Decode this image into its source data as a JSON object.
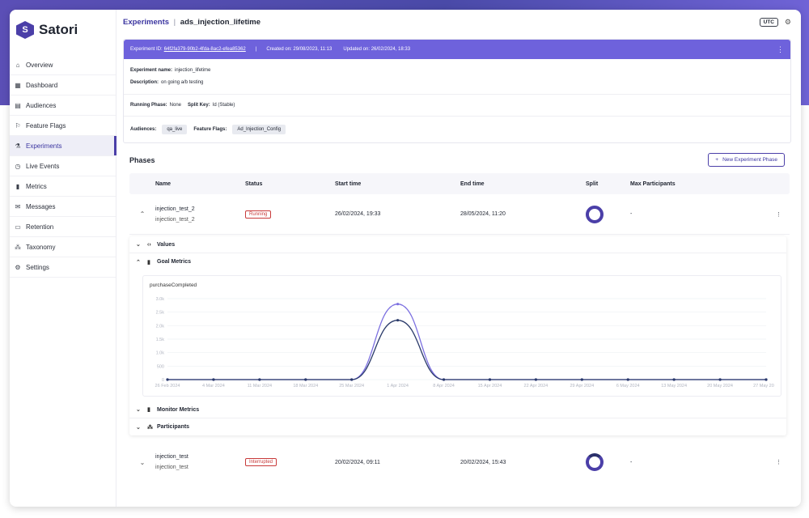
{
  "brand": {
    "name": "Satori",
    "accent": "#4b3fa8",
    "header_bg": "#6e62dc"
  },
  "sidebar": {
    "items": [
      {
        "label": "Overview",
        "icon": "home-icon",
        "glyph": "⌂"
      },
      {
        "label": "Dashboard",
        "icon": "dashboard-icon",
        "glyph": "▦"
      },
      {
        "label": "Audiences",
        "icon": "audiences-icon",
        "glyph": "▤"
      },
      {
        "label": "Feature Flags",
        "icon": "flag-icon",
        "glyph": "⚐"
      },
      {
        "label": "Experiments",
        "icon": "experiments-icon",
        "glyph": "⚗"
      },
      {
        "label": "Live Events",
        "icon": "live-events-icon",
        "glyph": "◷"
      },
      {
        "label": "Metrics",
        "icon": "metrics-icon",
        "glyph": "▮"
      },
      {
        "label": "Messages",
        "icon": "messages-icon",
        "glyph": "✉"
      },
      {
        "label": "Retention",
        "icon": "retention-icon",
        "glyph": "▭"
      },
      {
        "label": "Taxonomy",
        "icon": "taxonomy-icon",
        "glyph": "⁂"
      },
      {
        "label": "Settings",
        "icon": "settings-icon",
        "glyph": "⚙"
      }
    ],
    "active_index": 4
  },
  "header": {
    "breadcrumb_link": "Experiments",
    "breadcrumb_sep": "|",
    "breadcrumb_current": "ads_injection_lifetime",
    "timezone": "UTC"
  },
  "experiment": {
    "id_label": "Experiment ID:",
    "id_value": "64f2fa379-90b2-4fda-8ac2-efea85362",
    "created_label": "Created on:",
    "created_value": "29/08/2023, 11:13",
    "updated_label": "Updated on:",
    "updated_value": "26/02/2024, 18:33",
    "name_label": "Experiment name:",
    "name_value": "injection_lifetime",
    "description_label": "Description:",
    "description_value": "on going a/b testing",
    "running_phase_label": "Running Phase:",
    "running_phase_value": "None",
    "split_key_label": "Split Key:",
    "split_key_value": "Id (Stable)",
    "audiences_label": "Audiences:",
    "audiences_value": "qa_live",
    "feature_flags_label": "Feature Flags:",
    "feature_flags_value": "Ad_Injection_Config"
  },
  "phases": {
    "title": "Phases",
    "new_button": "New Experiment Phase",
    "columns": [
      "Name",
      "Status",
      "Start time",
      "End time",
      "Split",
      "Max Participants"
    ],
    "rows": [
      {
        "name": "injection_test_2",
        "subname": "injection_test_2",
        "status": "Running",
        "start": "26/02/2024, 19:33",
        "end": "28/05/2024, 11:20",
        "max": "-"
      },
      {
        "name": "injection_test",
        "subname": "injection_test",
        "status": "Interrupted",
        "start": "20/02/2024, 09:11",
        "end": "20/02/2024, 15:43",
        "max": "-"
      }
    ],
    "sections": {
      "values": "Values",
      "goal_metrics": "Goal Metrics",
      "monitor_metrics": "Monitor Metrics",
      "participants": "Participants"
    }
  },
  "chart_data": {
    "type": "line",
    "title": "purchaseCompleted",
    "x": [
      "26 Feb 2024",
      "4 Mar 2024",
      "11 Mar 2024",
      "18 Mar 2024",
      "25 Mar 2024",
      "1 Apr 2024",
      "8 Apr 2024",
      "15 Apr 2024",
      "22 Apr 2024",
      "29 Apr 2024",
      "6 May 2024",
      "13 May 2024",
      "20 May 2024",
      "27 May 2024"
    ],
    "yticks": [
      "0",
      "500",
      "1.0k",
      "1.5k",
      "2.0k",
      "2.5k",
      "3.0k"
    ],
    "ylim": [
      0,
      3000
    ],
    "series": [
      {
        "values": [
          0,
          0,
          0,
          0,
          0,
          2800,
          0,
          0,
          0,
          0,
          0,
          0,
          0,
          0
        ],
        "color": "#7b6fe0"
      },
      {
        "values": [
          0,
          0,
          0,
          0,
          0,
          2200,
          0,
          0,
          0,
          0,
          0,
          0,
          0,
          0
        ],
        "color": "#2a3a6a"
      }
    ]
  }
}
